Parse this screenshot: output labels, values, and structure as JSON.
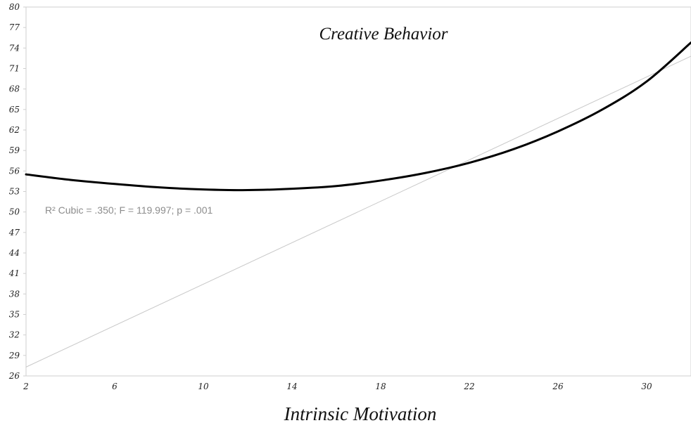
{
  "chart_data": {
    "type": "line",
    "title": "Creative Behavior",
    "xlabel": "Intrinsic Motivation",
    "ylabel": "",
    "xlim": [
      2,
      32
    ],
    "ylim": [
      26,
      80
    ],
    "x_ticks": [
      "2",
      "6",
      "10",
      "14",
      "18",
      "22",
      "26",
      "30"
    ],
    "y_ticks": [
      "26",
      "29",
      "32",
      "35",
      "38",
      "41",
      "44",
      "47",
      "50",
      "53",
      "56",
      "59",
      "62",
      "65",
      "68",
      "71",
      "74",
      "77",
      "80"
    ],
    "annotation": "R² Cubic = .350; F = 119.997; p = .001",
    "grid": false,
    "series": [
      {
        "kind": "cubic-fit",
        "color": "#000000",
        "x": [
          2,
          4,
          6,
          8,
          10,
          12,
          14,
          16,
          18,
          20,
          22,
          24,
          26,
          28,
          30,
          32
        ],
        "y": [
          55.5,
          54.7,
          54.1,
          53.6,
          53.3,
          53.2,
          53.4,
          53.8,
          54.6,
          55.7,
          57.2,
          59.2,
          61.8,
          65.0,
          69.1,
          74.8
        ]
      },
      {
        "kind": "linear-fit",
        "color": "#c8c8c8",
        "x": [
          2,
          32
        ],
        "y": [
          27.3,
          72.8
        ]
      }
    ]
  }
}
